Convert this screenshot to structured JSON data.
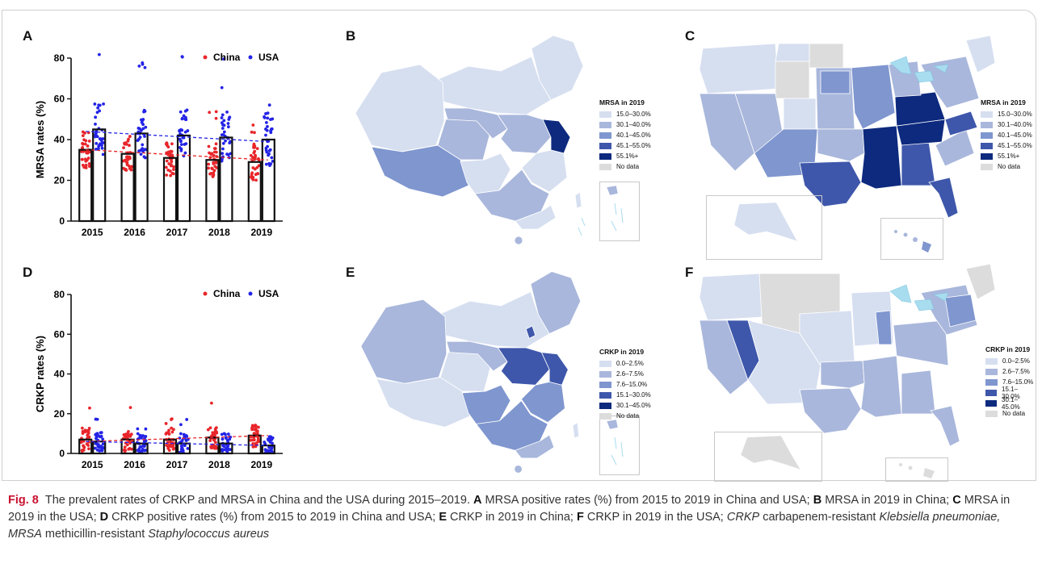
{
  "panels": {
    "A": "A",
    "B": "B",
    "C": "C",
    "D": "D",
    "E": "E",
    "F": "F"
  },
  "colors": {
    "china": "#e8262b",
    "usa": "#2323e6",
    "bar_edge": "#111111",
    "ramp": [
      "#d6dff0",
      "#a9b7dc",
      "#7f96cf",
      "#3e57ab",
      "#0d2a7e"
    ],
    "no_data": "#dcdcdc",
    "water": "#a8dcef"
  },
  "chart_data": [
    {
      "panel": "A",
      "type": "bar",
      "categories": [
        "2015",
        "2016",
        "2017",
        "2018",
        "2019"
      ],
      "series": [
        {
          "name": "China",
          "values": [
            35,
            33,
            31,
            30,
            29
          ],
          "trend": [
            35,
            30
          ]
        },
        {
          "name": "USA",
          "values": [
            45,
            43,
            42,
            41,
            40
          ],
          "trend": [
            44,
            39
          ]
        }
      ],
      "ylabel": "MRSA rates (%)",
      "ylim": [
        0,
        80
      ],
      "yticks": [
        "0",
        "20",
        "40",
        "60",
        "80"
      ],
      "legend": "top-right"
    },
    {
      "panel": "D",
      "type": "bar",
      "categories": [
        "2015",
        "2016",
        "2017",
        "2018",
        "2019"
      ],
      "series": [
        {
          "name": "China",
          "values": [
            7,
            7,
            7,
            8,
            9
          ],
          "trend": [
            6,
            9
          ]
        },
        {
          "name": "USA",
          "values": [
            6,
            5,
            5,
            5,
            4
          ],
          "trend": [
            6,
            4
          ]
        }
      ],
      "ylabel": "CRKP rates (%)",
      "ylim": [
        0,
        80
      ],
      "yticks": [
        "0",
        "20",
        "40",
        "60",
        "80"
      ],
      "legend": "top-right"
    }
  ],
  "maps": {
    "mrsa_legend": {
      "title": "MRSA in 2019",
      "entries": [
        "15.0–30.0%",
        "30.1–40.0%",
        "40.1–45.0%",
        "45.1–55.0%",
        "55.1%+",
        "No data"
      ]
    },
    "crkp_legend": {
      "title": "CRKP in 2019",
      "entries": [
        "0.0–2.5%",
        "2.6–7.5%",
        "7.6–15.0%",
        "15.1–30.0%",
        "30.1–45.0%",
        "No data"
      ]
    }
  },
  "caption": {
    "fig": "Fig. 8",
    "t1": "The prevalent rates of CRKP and MRSA in China and the USA during 2015–2019.",
    "A": "A",
    "t2": " MRSA positive rates (%) from 2015 to 2019 in China and USA;",
    "B": "B",
    "t3": " MRSA in 2019 in China;",
    "C": "C",
    "t4": " MRSA in 2019 in the USA;",
    "D": "D",
    "t5": " CRKP positive rates (%) from 2015 to 2019 in China and USA;",
    "E": "E",
    "t6": " CRKP in 2019 in China;",
    "F": "F",
    "t7": " CRKP in 2019 in the USA;",
    "abbr1": "CRKP",
    "t8": " carbapenem-resistant ",
    "species1": "Klebsiella pneumoniae, MRSA",
    "t9": " methicillin-resistant ",
    "species2": "Staphylococcus aureus"
  }
}
